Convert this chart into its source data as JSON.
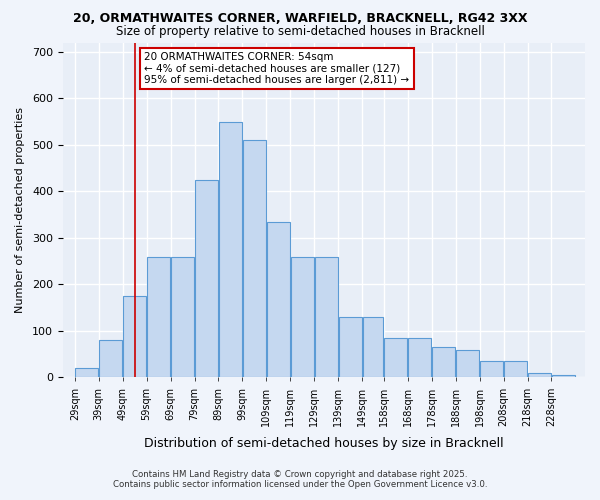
{
  "title1": "20, ORMATHWAITES CORNER, WARFIELD, BRACKNELL, RG42 3XX",
  "title2": "Size of property relative to semi-detached houses in Bracknell",
  "xlabel": "Distribution of semi-detached houses by size in Bracknell",
  "ylabel": "Number of semi-detached properties",
  "bar_edges": [
    29,
    39,
    49,
    59,
    69,
    79,
    89,
    99,
    109,
    119,
    129,
    139,
    149,
    158,
    168,
    178,
    188,
    198,
    208,
    218,
    228,
    238
  ],
  "bar_heights": [
    20,
    80,
    175,
    260,
    260,
    425,
    550,
    510,
    335,
    260,
    260,
    130,
    130,
    85,
    85,
    65,
    60,
    35,
    35,
    10,
    5
  ],
  "bar_color": "#c5d8f0",
  "bar_edgecolor": "#5b9bd5",
  "property_size": 54,
  "property_label": "20 ORMATHWAITES CORNER: 54sqm",
  "smaller_pct": "4%",
  "smaller_n": "127",
  "larger_pct": "95%",
  "larger_n": "2,811",
  "vline_color": "#cc0000",
  "annotation_box_edgecolor": "#cc0000",
  "ylim": [
    0,
    720
  ],
  "yticks": [
    0,
    100,
    200,
    300,
    400,
    500,
    600,
    700
  ],
  "bg_color": "#e8eef7",
  "grid_color": "#ffffff",
  "footer1": "Contains HM Land Registry data © Crown copyright and database right 2025.",
  "footer2": "Contains public sector information licensed under the Open Government Licence v3.0."
}
